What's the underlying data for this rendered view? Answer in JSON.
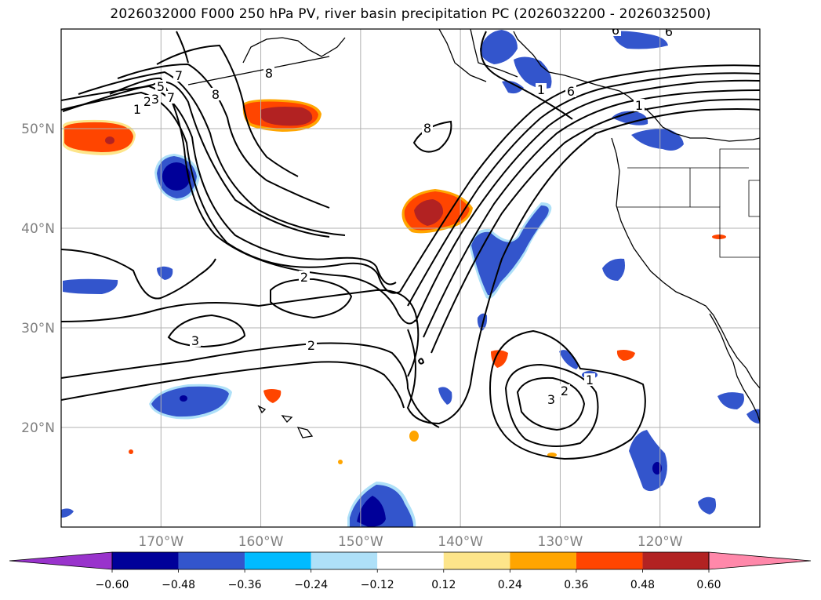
{
  "title": "2026032000 F000 250 hPa PV, river basin precipitation PC (2026032200 - 2026032500)",
  "chart_data": {
    "type": "map contour/filled-contour",
    "title": "2026032000 F000 250 hPa PV, river basin precipitation PC (2026032200 - 2026032500)",
    "longitude_range": [
      -180,
      -110
    ],
    "latitude_range": [
      10,
      60
    ],
    "grid": true,
    "x_ticks": [
      {
        "lon": -170,
        "label": "170°W"
      },
      {
        "lon": -160,
        "label": "160°W"
      },
      {
        "lon": -150,
        "label": "150°W"
      },
      {
        "lon": -140,
        "label": "140°W"
      },
      {
        "lon": -130,
        "label": "130°W"
      },
      {
        "lon": -120,
        "label": "120°W"
      }
    ],
    "y_ticks": [
      {
        "lat": 20,
        "label": "20°N"
      },
      {
        "lat": 30,
        "label": "30°N"
      },
      {
        "lat": 40,
        "label": "40°N"
      },
      {
        "lat": 50,
        "label": "50°N"
      }
    ],
    "colorbar": {
      "extend": "both",
      "levels": [
        -0.72,
        -0.6,
        -0.48,
        -0.36,
        -0.24,
        -0.12,
        0.12,
        0.24,
        0.36,
        0.48,
        0.6,
        0.72
      ],
      "tick_labels": [
        "−0.60",
        "−0.48",
        "−0.36",
        "−0.24",
        "−0.12",
        "0.12",
        "0.24",
        "0.36",
        "0.48",
        "0.60"
      ],
      "colors": [
        "#9933cc",
        "#000099",
        "#3355cc",
        "#00bbff",
        "#aee0f8",
        "#ffffff",
        "#fde58a",
        "#ffa500",
        "#ff4500",
        "#b22222",
        "#ff88aa"
      ]
    },
    "contour_labels": [
      "5",
      "7",
      "8",
      "8",
      "8",
      "1",
      "2",
      "3",
      "7",
      "1",
      "2",
      "3",
      "2",
      "2",
      "3",
      "1",
      "1",
      "6",
      "6",
      "6"
    ]
  }
}
